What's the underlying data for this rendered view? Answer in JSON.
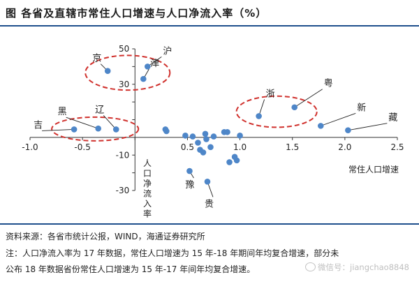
{
  "header": {
    "title": "图    各省及直辖市常住人口增速与人口净流入率（%）"
  },
  "footer": {
    "source": "资料来源：各省市统计公报，WIND，海通证券研究所",
    "note_line1": "注：人口净流入率为 17 年数据，常住人口增速为 15 年-18 年期间年均复合增速，部分未",
    "note_line2": "公布 18 年数据省份常住人口增速为 15 年-17 年间年均复合增速。",
    "watermark": "微信号：jiangchao8848"
  },
  "chart_data": {
    "type": "scatter",
    "xlabel": "常住人口增速",
    "ylabel": "人口净流入率",
    "xlim": [
      -1.0,
      2.5
    ],
    "ylim": [
      -30,
      50
    ],
    "xticks": [
      -1.0,
      -0.5,
      0.0,
      0.5,
      1.0,
      1.5,
      2.0,
      2.5
    ],
    "xtick_labels": [
      "-1.0",
      "-0.5",
      "",
      "0.5",
      "1.0",
      "1.5",
      "2.0",
      "2.5"
    ],
    "yticks": [
      -30,
      -20,
      -10,
      10,
      20,
      30,
      40,
      50
    ],
    "ytick_labels": [
      "-30",
      "",
      "-10",
      "",
      "",
      "30",
      "",
      "50"
    ],
    "point_color": "#4e86c8",
    "highlight_color": "#d0312d",
    "points": [
      {
        "x": 0.12,
        "y": 40,
        "label": "沪"
      },
      {
        "x": 0.08,
        "y": 33,
        "label": "津"
      },
      {
        "x": -0.26,
        "y": 37.5,
        "label": "京"
      },
      {
        "x": -0.35,
        "y": 5,
        "label": "黑"
      },
      {
        "x": -0.18,
        "y": 4.5,
        "label": "辽"
      },
      {
        "x": -0.58,
        "y": 4.5,
        "label": "吉"
      },
      {
        "x": 1.18,
        "y": 12,
        "label": "浙"
      },
      {
        "x": 1.52,
        "y": 17,
        "label": "粤"
      },
      {
        "x": 1.77,
        "y": 6.5,
        "label": "新"
      },
      {
        "x": 2.03,
        "y": 4,
        "label": "藏"
      },
      {
        "x": 0.52,
        "y": -19,
        "label": "豫"
      },
      {
        "x": 0.69,
        "y": -25,
        "label": "贵"
      },
      {
        "x": 0.29,
        "y": 4.5
      },
      {
        "x": 0.3,
        "y": 3.5
      },
      {
        "x": 0.48,
        "y": 1
      },
      {
        "x": 0.55,
        "y": 0.5
      },
      {
        "x": 0.6,
        "y": -3
      },
      {
        "x": 0.62,
        "y": -7
      },
      {
        "x": 0.65,
        "y": -8.5
      },
      {
        "x": 0.68,
        "y": -1
      },
      {
        "x": 0.72,
        "y": -5.5
      },
      {
        "x": 0.67,
        "y": 2
      },
      {
        "x": 0.75,
        "y": 0.5
      },
      {
        "x": 0.85,
        "y": 3
      },
      {
        "x": 0.88,
        "y": 3
      },
      {
        "x": 0.9,
        "y": -14
      },
      {
        "x": 0.95,
        "y": -11
      },
      {
        "x": 0.97,
        "y": -13
      },
      {
        "x": 1.0,
        "y": 1
      }
    ],
    "groups": [
      {
        "members": [
          "沪",
          "津",
          "京"
        ]
      },
      {
        "members": [
          "黑",
          "辽",
          "吉"
        ]
      },
      {
        "members": [
          "浙",
          "粤"
        ]
      }
    ]
  }
}
